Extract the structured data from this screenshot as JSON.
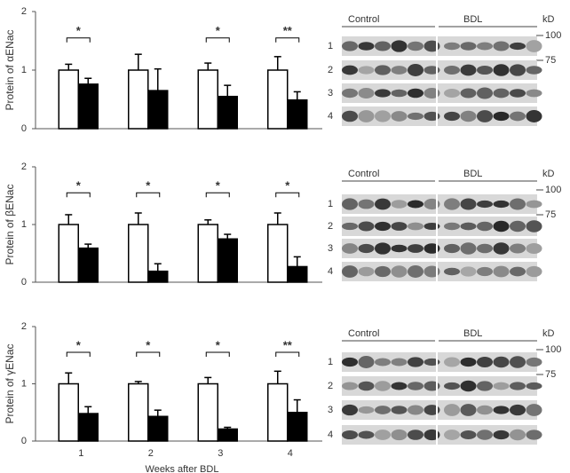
{
  "chart_data": [
    {
      "type": "bar",
      "y_label": "Protein of αENac",
      "categories": [
        null,
        null,
        null,
        null
      ],
      "series": [
        {
          "color": "#ffffff",
          "values": [
            1.0,
            1.0,
            1.0,
            1.0
          ],
          "errors": [
            0.1,
            0.27,
            0.12,
            0.23
          ]
        },
        {
          "color": "#000000",
          "values": [
            0.76,
            0.65,
            0.55,
            0.49
          ],
          "errors": [
            0.1,
            0.37,
            0.19,
            0.14
          ]
        }
      ],
      "annotations": [
        "*",
        null,
        "*",
        "**"
      ],
      "ylim": [
        0,
        2
      ],
      "yticks": [
        0,
        1,
        2
      ]
    },
    {
      "type": "bar",
      "y_label": "Protein of βENac",
      "categories": [
        null,
        null,
        null,
        null
      ],
      "series": [
        {
          "color": "#ffffff",
          "values": [
            1.0,
            1.0,
            1.0,
            1.0
          ],
          "errors": [
            0.17,
            0.2,
            0.08,
            0.2
          ]
        },
        {
          "color": "#000000",
          "values": [
            0.59,
            0.19,
            0.75,
            0.27
          ],
          "errors": [
            0.07,
            0.13,
            0.08,
            0.17
          ]
        }
      ],
      "annotations": [
        "*",
        "*",
        "*",
        "*"
      ],
      "ylim": [
        0,
        2
      ],
      "yticks": [
        0,
        1,
        2
      ]
    },
    {
      "type": "bar",
      "y_label": "Protein of γENac",
      "x_label": "Weeks after BDL",
      "categories": [
        "1",
        "2",
        "3",
        "4"
      ],
      "series": [
        {
          "color": "#ffffff",
          "values": [
            1.0,
            1.0,
            1.0,
            1.0
          ],
          "errors": [
            0.19,
            0.04,
            0.11,
            0.22
          ]
        },
        {
          "color": "#000000",
          "values": [
            0.48,
            0.43,
            0.21,
            0.5
          ],
          "errors": [
            0.12,
            0.11,
            0.03,
            0.22
          ]
        }
      ],
      "annotations": [
        "*",
        "*",
        "*",
        "**"
      ],
      "ylim": [
        0,
        2
      ],
      "yticks": [
        0,
        1,
        2
      ]
    }
  ],
  "blots": [
    {
      "groups": [
        "Control",
        "BDL"
      ],
      "unit": "kD",
      "markers": [
        "100",
        "75"
      ],
      "rows": [
        "1",
        "2",
        "3",
        "4"
      ]
    },
    {
      "groups": [
        "Control",
        "BDL"
      ],
      "unit": "kD",
      "markers": [
        "100",
        "75"
      ],
      "rows": [
        "1",
        "2",
        "3",
        "4"
      ]
    },
    {
      "groups": [
        "Control",
        "BDL"
      ],
      "unit": "kD",
      "markers": [
        "100",
        "75"
      ],
      "rows": [
        "1",
        "2",
        "3",
        "4"
      ]
    }
  ]
}
